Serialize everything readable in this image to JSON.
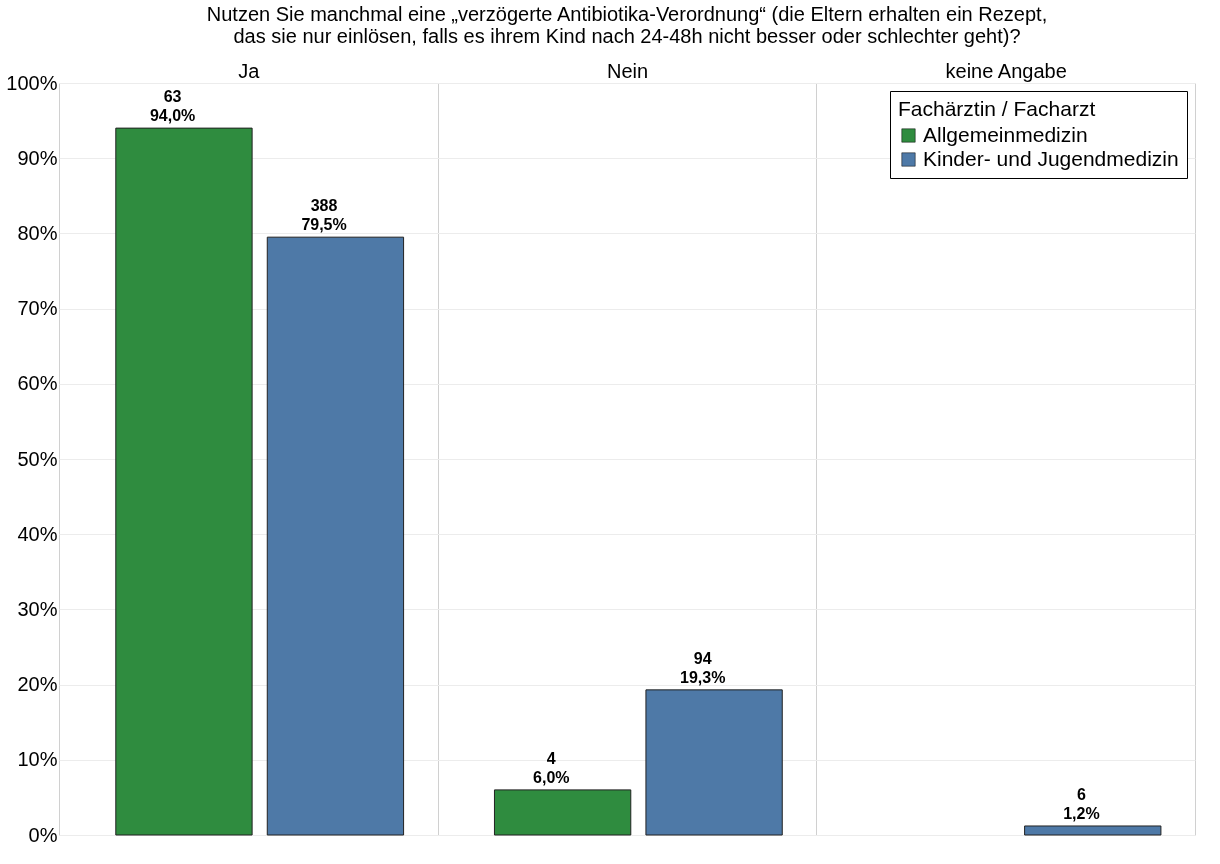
{
  "chart_data": {
    "type": "bar",
    "title": "Nutzen Sie manchmal eine „verzögerte Antibiotika-Verordnung“ (die Eltern erhalten ein Rezept, das sie nur einlösen, falls es ihrem Kind nach 24-48h nicht besser oder schlechter geht)?",
    "categories": [
      "Ja",
      "Nein",
      "keine Angabe"
    ],
    "legend_title": "Fachärztin / Facharzt",
    "series": [
      {
        "name": "Allgemeinmedizin",
        "color": "#2f8c3f",
        "values": [
          94.0,
          6.0,
          null
        ],
        "value_labels": [
          "63\n94,0%",
          "4\n6,0%",
          null
        ]
      },
      {
        "name": "Kinder- und Jugendmedizin",
        "color": "#4e79a7",
        "values": [
          79.5,
          19.3,
          1.2
        ],
        "value_labels": [
          "388\n79,5%",
          "94\n19,3%",
          "6\n1,2%"
        ]
      }
    ],
    "ylim": [
      0,
      100
    ],
    "yticks": [
      {
        "value": 0,
        "label": "0%"
      },
      {
        "value": 10,
        "label": "10%"
      },
      {
        "value": 20,
        "label": "20%"
      },
      {
        "value": 30,
        "label": "30%"
      },
      {
        "value": 40,
        "label": "40%"
      },
      {
        "value": 50,
        "label": "50%"
      },
      {
        "value": 60,
        "label": "60%"
      },
      {
        "value": 70,
        "label": "70%"
      },
      {
        "value": 80,
        "label": "80%"
      },
      {
        "value": 90,
        "label": "90%"
      },
      {
        "value": 100,
        "label": "100%"
      }
    ],
    "grid": true,
    "legend": "top right"
  }
}
